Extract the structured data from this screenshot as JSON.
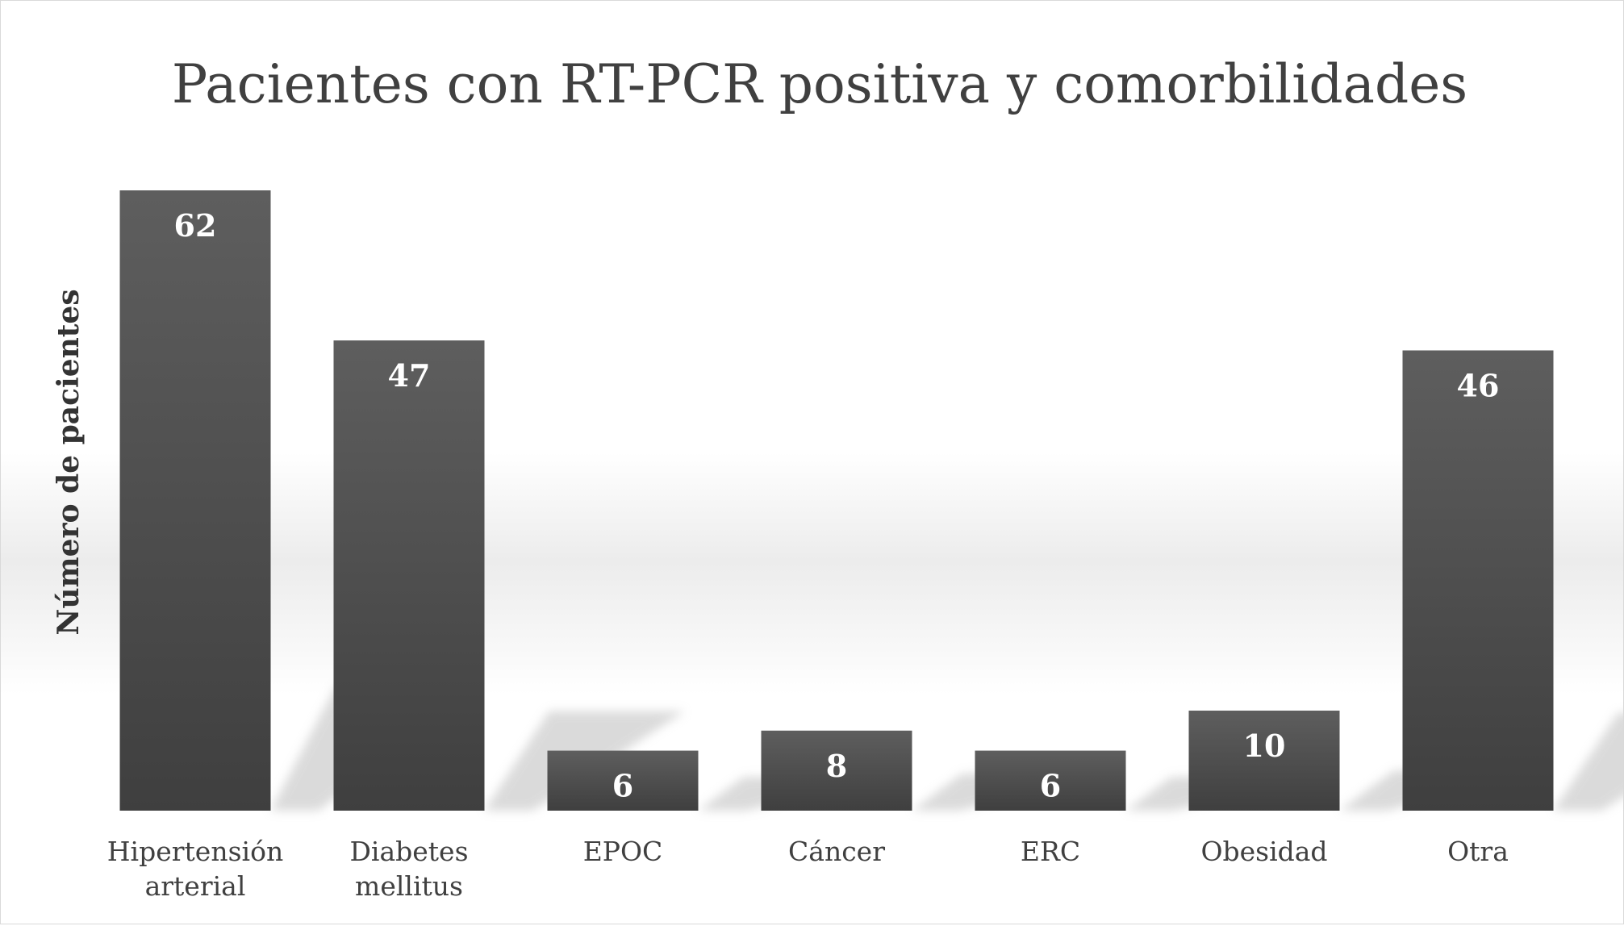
{
  "chart_data": {
    "type": "bar",
    "title": "Pacientes con RT-PCR positiva y comorbilidades",
    "xlabel": "",
    "ylabel": "Número de pacientes",
    "categories": [
      [
        "Hipertensión",
        "arterial"
      ],
      [
        "Diabetes",
        "mellitus"
      ],
      [
        "EPOC"
      ],
      [
        "Cáncer"
      ],
      [
        "ERC"
      ],
      [
        "Obesidad"
      ],
      [
        "Otra"
      ]
    ],
    "values": [
      62,
      47,
      6,
      8,
      6,
      10,
      46
    ],
    "ylim": [
      0,
      62
    ],
    "grid": false,
    "legend": "none",
    "data_labels": "inside-top",
    "colors": {
      "bar_top": "#5d5d5d",
      "bar_bottom": "#404040",
      "text": "#404040",
      "value_text": "#ffffff"
    }
  }
}
